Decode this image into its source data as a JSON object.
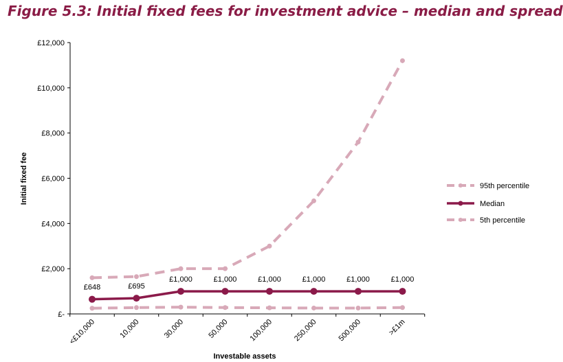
{
  "figure_title": "Figure 5.3: Initial fixed fees for investment advice – median and spread",
  "colors": {
    "title": "#8a1c46",
    "median": "#8b1a4a",
    "percentile": "#d8a9b8",
    "axis": "#000000"
  },
  "chart_data": {
    "type": "line",
    "title": "Figure 5.3: Initial fixed fees for investment advice – median and spread",
    "xlabel": "Investable  assets",
    "ylabel": "Initial fixed fee",
    "categories": [
      "<£10,000",
      "10,000",
      "30,000",
      "50,000",
      "100,000",
      "250,000",
      "500,000",
      ">£1m"
    ],
    "ylim": [
      0,
      12000
    ],
    "yticks": [
      0,
      2000,
      4000,
      6000,
      8000,
      10000,
      12000
    ],
    "ytick_labels": [
      "£-",
      "£2,000",
      "£4,000",
      "£6,000",
      "£8,000",
      "£10,000",
      "£12,000"
    ],
    "grid": false,
    "legend_position": "right",
    "series": [
      {
        "name": "95th percentile",
        "values": [
          1600,
          1650,
          2000,
          2000,
          3000,
          5000,
          7600,
          11200
        ],
        "style": "dashed",
        "color": "#d8a9b8"
      },
      {
        "name": "Median",
        "values": [
          648,
          695,
          1000,
          1000,
          1000,
          1000,
          1000,
          1000
        ],
        "style": "solid",
        "color": "#8b1a4a",
        "data_labels": [
          "£648",
          "£695",
          "£1,000",
          "£1,000",
          "£1,000",
          "£1,000",
          "£1,000",
          "£1,000"
        ]
      },
      {
        "name": "5th percentile",
        "values": [
          250,
          280,
          300,
          280,
          270,
          260,
          260,
          280
        ],
        "style": "dashed",
        "color": "#d8a9b8"
      }
    ]
  }
}
